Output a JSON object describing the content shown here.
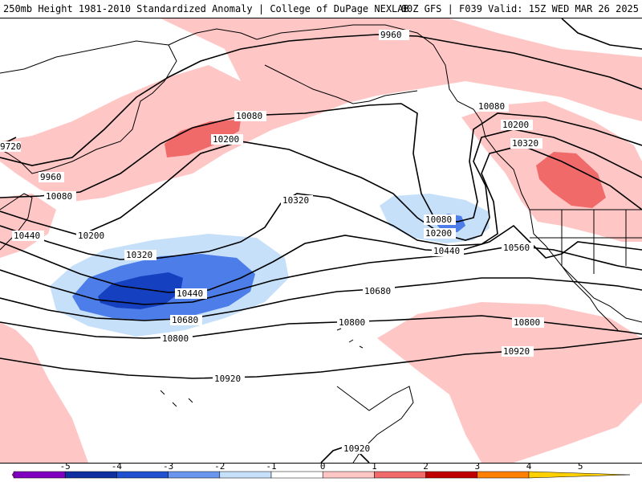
{
  "header": {
    "left_title": "250mb Height 1981-2010 Standardized Anomaly | College of DuPage NEXLAB",
    "right_title": "00Z GFS | F039 Valid: 15Z WED MAR 26 2025"
  },
  "colors": {
    "anom_pos1": "#ffc6c6",
    "anom_pos2": "#f06a6a",
    "anom_neg1": "#c6e0fa",
    "anom_neg2": "#4d7de8",
    "anom_neg3": "#1540c0",
    "contour": "#000000",
    "coast": "#000000"
  },
  "contour_labels": [
    {
      "id": "9960-ne",
      "text": "9960"
    },
    {
      "id": "9960-w",
      "text": "9960"
    },
    {
      "id": "9720-w",
      "text": "9720"
    },
    {
      "id": "10080-a",
      "text": "10080"
    },
    {
      "id": "10080-w",
      "text": "10080"
    },
    {
      "id": "10080-low",
      "text": "10080"
    },
    {
      "id": "10080-e",
      "text": "10080"
    },
    {
      "id": "10200-a",
      "text": "10200"
    },
    {
      "id": "10200-w",
      "text": "10200"
    },
    {
      "id": "10200-low",
      "text": "10200"
    },
    {
      "id": "10200-e",
      "text": "10200"
    },
    {
      "id": "10320-a",
      "text": "10320"
    },
    {
      "id": "10320-w",
      "text": "10320"
    },
    {
      "id": "10320-e",
      "text": "10320"
    },
    {
      "id": "10440-w",
      "text": "10440"
    },
    {
      "id": "10440-c",
      "text": "10440"
    },
    {
      "id": "10440-e",
      "text": "10440"
    },
    {
      "id": "10560-e",
      "text": "10560"
    },
    {
      "id": "10680-c",
      "text": "10680"
    },
    {
      "id": "10680-w",
      "text": "10680"
    },
    {
      "id": "10800-w",
      "text": "10800"
    },
    {
      "id": "10800-c",
      "text": "10800"
    },
    {
      "id": "10800-e",
      "text": "10800"
    },
    {
      "id": "10920-c",
      "text": "10920"
    },
    {
      "id": "10920-e",
      "text": "10920"
    },
    {
      "id": "10920-s",
      "text": "10920"
    }
  ],
  "colorbar": {
    "ticks": [
      "-5",
      "-4",
      "-3",
      "-2",
      "-1",
      "0",
      "1",
      "2",
      "3",
      "4",
      "5"
    ],
    "colors": [
      "#c020c0",
      "#8000c0",
      "#1030a0",
      "#2050d0",
      "#6a95ee",
      "#c6e0fa",
      "#ffffff",
      "#ffc6c6",
      "#f06a6a",
      "#c00000",
      "#ff8000",
      "#ffd000"
    ]
  }
}
